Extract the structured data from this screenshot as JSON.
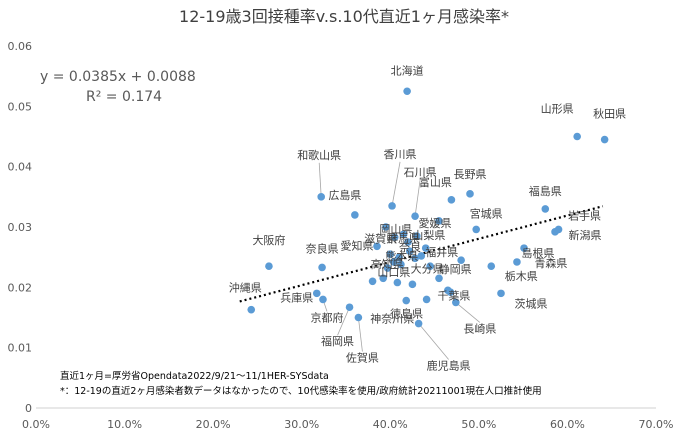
{
  "chart_data": {
    "type": "scatter",
    "title": "12-19歳3回接種率v.s.10代直近1ヶ月感染率*",
    "xlabel": "",
    "ylabel": "",
    "xlim": [
      0,
      0.7
    ],
    "ylim": [
      0,
      0.06
    ],
    "x_ticks": [
      "0.0%",
      "10.0%",
      "20.0%",
      "30.0%",
      "40.0%",
      "50.0%",
      "60.0%",
      "70.0%"
    ],
    "y_ticks": [
      "0",
      "0.01",
      "0.02",
      "0.03",
      "0.04",
      "0.05",
      "0.06"
    ],
    "grid": false,
    "trendline": {
      "slope": 0.0385,
      "intercept": 0.0088,
      "r2": 0.174,
      "x_range": [
        0.23,
        0.64
      ],
      "equation_text": "y = 0.0385x + 0.0088",
      "r2_text": "R² = 0.174"
    },
    "notes": [
      "直近1ヶ月=厚労省Opendata2022/9/21～11/1HER-SYSdata",
      "*：12-19の直近2ヶ月感染者数データはなかったので、10代感染率を使用/政府統計20211001現在人口推計使用"
    ],
    "points": [
      {
        "x": 0.419,
        "y": 0.0525,
        "label": "北海道"
      },
      {
        "x": 0.611,
        "y": 0.045,
        "label": "山形県"
      },
      {
        "x": 0.642,
        "y": 0.0445,
        "label": "秋田県"
      },
      {
        "x": 0.402,
        "y": 0.0335,
        "label": "香川県"
      },
      {
        "x": 0.322,
        "y": 0.035,
        "label": "和歌山県"
      },
      {
        "x": 0.36,
        "y": 0.032,
        "label": "広島県"
      },
      {
        "x": 0.49,
        "y": 0.0355,
        "label": "長野県"
      },
      {
        "x": 0.469,
        "y": 0.0345,
        "label": "富山県"
      },
      {
        "x": 0.428,
        "y": 0.0318,
        "label": "石川県"
      },
      {
        "x": 0.575,
        "y": 0.033,
        "label": "福島県"
      },
      {
        "x": 0.59,
        "y": 0.0296,
        "label": "岩手県"
      },
      {
        "x": 0.586,
        "y": 0.0292,
        "label": "新潟県"
      },
      {
        "x": 0.455,
        "y": 0.031,
        "label": "愛媛県"
      },
      {
        "x": 0.497,
        "y": 0.0296,
        "label": "宮城県"
      },
      {
        "x": 0.395,
        "y": 0.03,
        "label": "岡山県"
      },
      {
        "x": 0.415,
        "y": 0.0288,
        "label": "群馬県"
      },
      {
        "x": 0.405,
        "y": 0.0283,
        "label": "滋賀県"
      },
      {
        "x": 0.43,
        "y": 0.0285,
        "label": "山梨県"
      },
      {
        "x": 0.42,
        "y": 0.0275,
        "label": "奈良"
      },
      {
        "x": 0.44,
        "y": 0.0265,
        "label": "福井県"
      },
      {
        "x": 0.551,
        "y": 0.0265,
        "label": "島根県"
      },
      {
        "x": 0.422,
        "y": 0.026,
        "label": "熊本県"
      },
      {
        "x": 0.41,
        "y": 0.025,
        "label": "高知県"
      },
      {
        "x": 0.428,
        "y": 0.0248,
        "label": "大分県"
      },
      {
        "x": 0.404,
        "y": 0.0242,
        "label": "山口県"
      },
      {
        "x": 0.263,
        "y": 0.0235,
        "label": "大阪府"
      },
      {
        "x": 0.323,
        "y": 0.0233,
        "label": "奈良県"
      },
      {
        "x": 0.385,
        "y": 0.0268,
        "label": "愛知県"
      },
      {
        "x": 0.48,
        "y": 0.0245,
        "label": "静岡県"
      },
      {
        "x": 0.543,
        "y": 0.0242,
        "label": "青森県"
      },
      {
        "x": 0.514,
        "y": 0.0235,
        "label": "栃木県"
      },
      {
        "x": 0.243,
        "y": 0.0163,
        "label": "沖縄県"
      },
      {
        "x": 0.317,
        "y": 0.019,
        "label": "兵庫県"
      },
      {
        "x": 0.324,
        "y": 0.018,
        "label": "京都府"
      },
      {
        "x": 0.354,
        "y": 0.0167,
        "label": "福岡県"
      },
      {
        "x": 0.364,
        "y": 0.015,
        "label": "佐賀県"
      },
      {
        "x": 0.418,
        "y": 0.0178,
        "label": "神奈川県"
      },
      {
        "x": 0.441,
        "y": 0.018,
        "label": "徳島県"
      },
      {
        "x": 0.465,
        "y": 0.0195,
        "label": "千葉県"
      },
      {
        "x": 0.474,
        "y": 0.0175,
        "label": "長崎県"
      },
      {
        "x": 0.432,
        "y": 0.014,
        "label": "鹿児島県"
      },
      {
        "x": 0.525,
        "y": 0.019,
        "label": "茨城県"
      },
      {
        "x": 0.4,
        "y": 0.0255,
        "label": ""
      },
      {
        "x": 0.412,
        "y": 0.0238,
        "label": ""
      },
      {
        "x": 0.435,
        "y": 0.0252,
        "label": ""
      },
      {
        "x": 0.445,
        "y": 0.0235,
        "label": ""
      },
      {
        "x": 0.392,
        "y": 0.0215,
        "label": ""
      },
      {
        "x": 0.408,
        "y": 0.0208,
        "label": ""
      },
      {
        "x": 0.425,
        "y": 0.0205,
        "label": ""
      },
      {
        "x": 0.455,
        "y": 0.0215,
        "label": ""
      },
      {
        "x": 0.468,
        "y": 0.0192,
        "label": ""
      },
      {
        "x": 0.38,
        "y": 0.021,
        "label": ""
      },
      {
        "x": 0.397,
        "y": 0.0232,
        "label": ""
      }
    ]
  }
}
